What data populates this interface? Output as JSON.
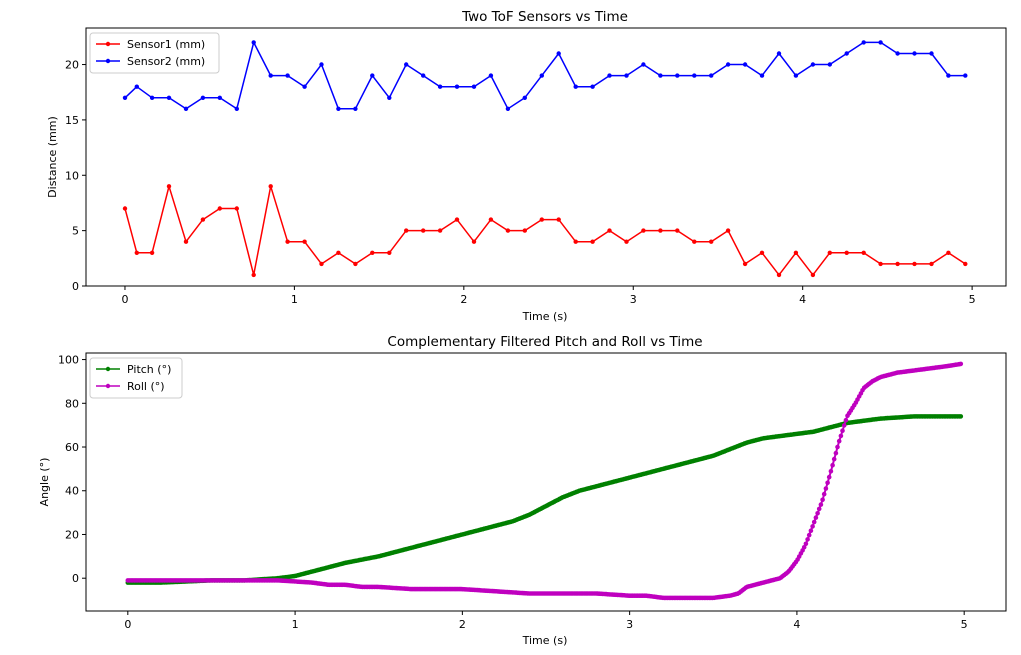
{
  "chart_data": [
    {
      "type": "line",
      "title": "Two ToF Sensors vs Time",
      "xlabel": "Time (s)",
      "ylabel": "Distance (mm)",
      "xlim": [
        -0.23,
        5.2
      ],
      "ylim": [
        0,
        23.3
      ],
      "xticks": [
        0,
        1,
        2,
        3,
        4,
        5
      ],
      "yticks": [
        0,
        5,
        10,
        15,
        20
      ],
      "grid": false,
      "legend": "upper-left",
      "x": [
        0.0,
        0.07,
        0.16,
        0.26,
        0.36,
        0.46,
        0.56,
        0.66,
        0.76,
        0.86,
        0.96,
        1.06,
        1.16,
        1.26,
        1.36,
        1.46,
        1.56,
        1.66,
        1.76,
        1.86,
        1.96,
        2.06,
        2.16,
        2.26,
        2.36,
        2.46,
        2.56,
        2.66,
        2.76,
        2.86,
        2.96,
        3.06,
        3.16,
        3.26,
        3.36,
        3.46,
        3.56,
        3.66,
        3.76,
        3.86,
        3.96,
        4.06,
        4.16,
        4.26,
        4.36,
        4.46,
        4.56,
        4.66,
        4.76,
        4.86,
        4.96
      ],
      "series": [
        {
          "name": "Sensor1 (mm)",
          "color": "#ff0000",
          "marker": "dot",
          "values": [
            7,
            3,
            3,
            9,
            4,
            6,
            7,
            7,
            1,
            9,
            4,
            4,
            2,
            3,
            2,
            3,
            3,
            5,
            5,
            5,
            6,
            4,
            6,
            5,
            5,
            6,
            6,
            4,
            4,
            5,
            4,
            5,
            5,
            5,
            4,
            4,
            5,
            2,
            3,
            1,
            3,
            1,
            3,
            3,
            3,
            2,
            2,
            2,
            2,
            3,
            2
          ]
        },
        {
          "name": "Sensor2 (mm)",
          "color": "#0000ff",
          "marker": "dot",
          "values": [
            17,
            18,
            17,
            17,
            16,
            17,
            17,
            16,
            22,
            19,
            19,
            18,
            20,
            16,
            16,
            19,
            17,
            20,
            19,
            18,
            18,
            18,
            19,
            16,
            17,
            19,
            21,
            18,
            18,
            19,
            19,
            20,
            19,
            19,
            19,
            19,
            20,
            20,
            19,
            21,
            19,
            20,
            20,
            21,
            22,
            22,
            21,
            21,
            21,
            19,
            19
          ]
        }
      ]
    },
    {
      "type": "line",
      "title": "Complementary Filtered Pitch and Roll vs Time",
      "xlabel": "Time (s)",
      "ylabel": "Angle (°)",
      "xlim": [
        -0.25,
        5.25
      ],
      "ylim": [
        -15,
        103
      ],
      "xticks": [
        0,
        1,
        2,
        3,
        4,
        5
      ],
      "yticks": [
        0,
        20,
        40,
        60,
        80,
        100
      ],
      "grid": false,
      "legend": "upper-left",
      "series": [
        {
          "name": "Pitch (°)",
          "color": "#008000",
          "marker": "dense dots",
          "x": [
            0.0,
            0.2,
            0.5,
            0.7,
            0.8,
            0.9,
            1.0,
            1.1,
            1.2,
            1.3,
            1.4,
            1.5,
            1.6,
            1.7,
            1.8,
            1.9,
            2.0,
            2.1,
            2.2,
            2.3,
            2.4,
            2.5,
            2.6,
            2.7,
            2.8,
            2.9,
            3.0,
            3.1,
            3.2,
            3.3,
            3.4,
            3.5,
            3.6,
            3.7,
            3.8,
            3.9,
            4.0,
            4.1,
            4.2,
            4.3,
            4.4,
            4.5,
            4.6,
            4.7,
            4.8,
            4.98
          ],
          "values": [
            -2,
            -2,
            -1,
            -1,
            -0.5,
            0,
            1,
            3,
            5,
            7,
            8.5,
            10,
            12,
            14,
            16,
            18,
            20,
            22,
            24,
            26,
            29,
            33,
            37,
            40,
            42,
            44,
            46,
            48,
            50,
            52,
            54,
            56,
            59,
            62,
            64,
            65,
            66,
            67,
            69,
            71,
            72,
            73,
            73.5,
            74,
            74,
            74
          ]
        },
        {
          "name": "Roll (°)",
          "color": "#bf00bf",
          "marker": "dense dots",
          "x": [
            0.0,
            0.3,
            0.6,
            0.9,
            1.1,
            1.2,
            1.3,
            1.4,
            1.5,
            1.7,
            1.9,
            2.0,
            2.2,
            2.4,
            2.6,
            2.7,
            2.8,
            3.0,
            3.1,
            3.2,
            3.3,
            3.4,
            3.5,
            3.6,
            3.65,
            3.7,
            3.75,
            3.8,
            3.85,
            3.9,
            3.95,
            4.0,
            4.05,
            4.1,
            4.15,
            4.2,
            4.25,
            4.3,
            4.35,
            4.4,
            4.45,
            4.5,
            4.6,
            4.7,
            4.8,
            4.9,
            4.98
          ],
          "values": [
            -1,
            -1,
            -1,
            -1,
            -2,
            -3,
            -3,
            -4,
            -4,
            -5,
            -5,
            -5,
            -6,
            -7,
            -7,
            -7,
            -7,
            -8,
            -8,
            -9,
            -9,
            -9,
            -9,
            -8,
            -7,
            -4,
            -3,
            -2,
            -1,
            0,
            3,
            8,
            15,
            25,
            35,
            48,
            62,
            74,
            80,
            87,
            90,
            92,
            94,
            95,
            96,
            97,
            98
          ]
        }
      ]
    }
  ]
}
